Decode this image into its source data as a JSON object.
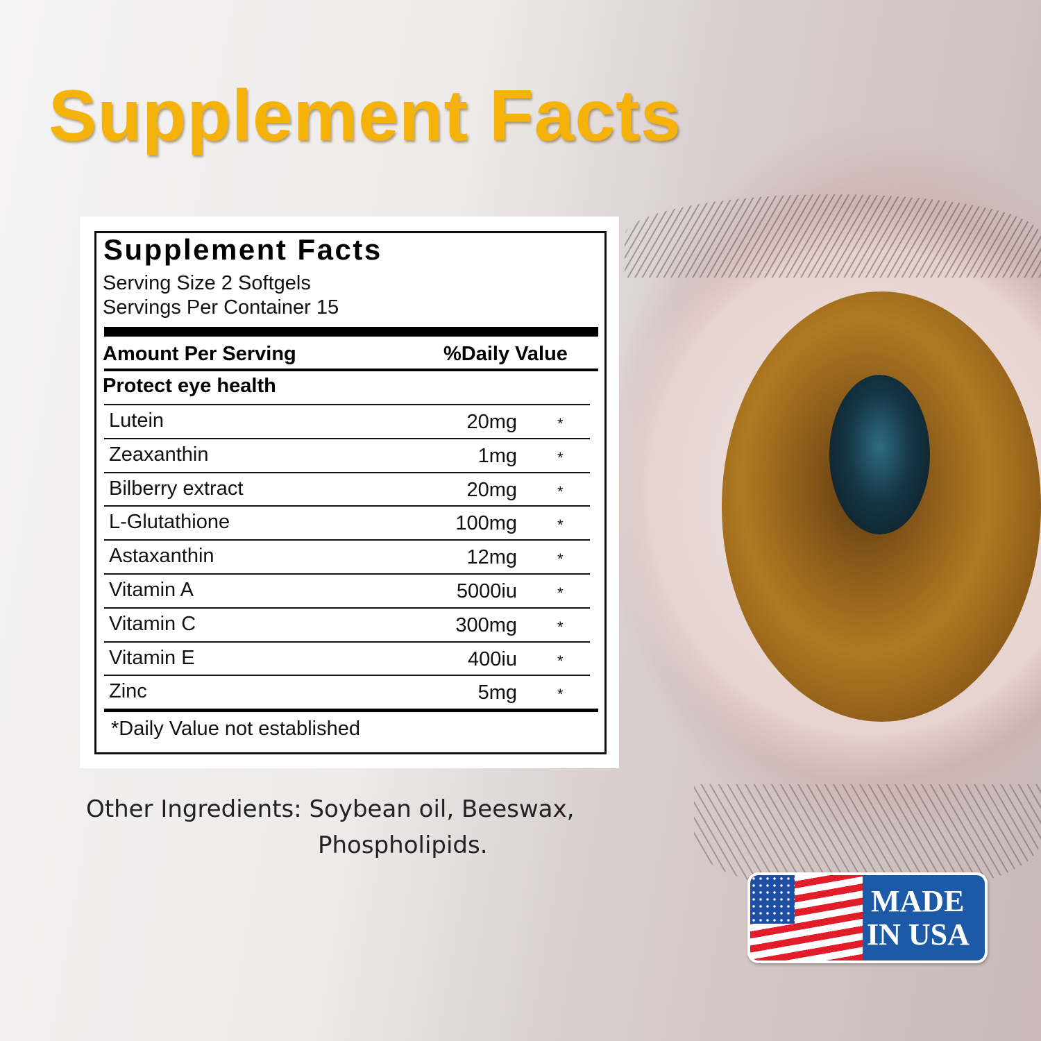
{
  "title": "Supplement Facts",
  "panel": {
    "heading": "Supplement Facts",
    "serving_size": "Serving Size 2 Softgels",
    "servings_per_container": "Servings Per Container 15",
    "col_amount": "Amount Per Serving",
    "col_dv": "%Daily Value",
    "section": "Protect eye health",
    "rows": [
      {
        "name": "Lutein",
        "amount": "20mg",
        "dv": "*"
      },
      {
        "name": "Zeaxanthin",
        "amount": "1mg",
        "dv": "*"
      },
      {
        "name": "Bilberry extract",
        "amount": "20mg",
        "dv": "*"
      },
      {
        "name": "L-Glutathione",
        "amount": "100mg",
        "dv": "*"
      },
      {
        "name": "Astaxanthin",
        "amount": "12mg",
        "dv": "*"
      },
      {
        "name": "Vitamin A",
        "amount": "5000iu",
        "dv": "*"
      },
      {
        "name": "Vitamin C",
        "amount": "300mg",
        "dv": "*"
      },
      {
        "name": "Vitamin E",
        "amount": "400iu",
        "dv": "*"
      },
      {
        "name": "Zinc",
        "amount": "5mg",
        "dv": "*"
      }
    ],
    "footnote": "*Daily Value not established"
  },
  "other_ingredients": {
    "line1": "Other Ingredients: Soybean oil, Beeswax,",
    "line2": "Phospholipids."
  },
  "badge": {
    "line1": "MADE",
    "line2": "IN USA"
  },
  "colors": {
    "title": "#f5b30a",
    "badge_blue": "#1c5aa8",
    "flag_red": "#e21d2a"
  }
}
